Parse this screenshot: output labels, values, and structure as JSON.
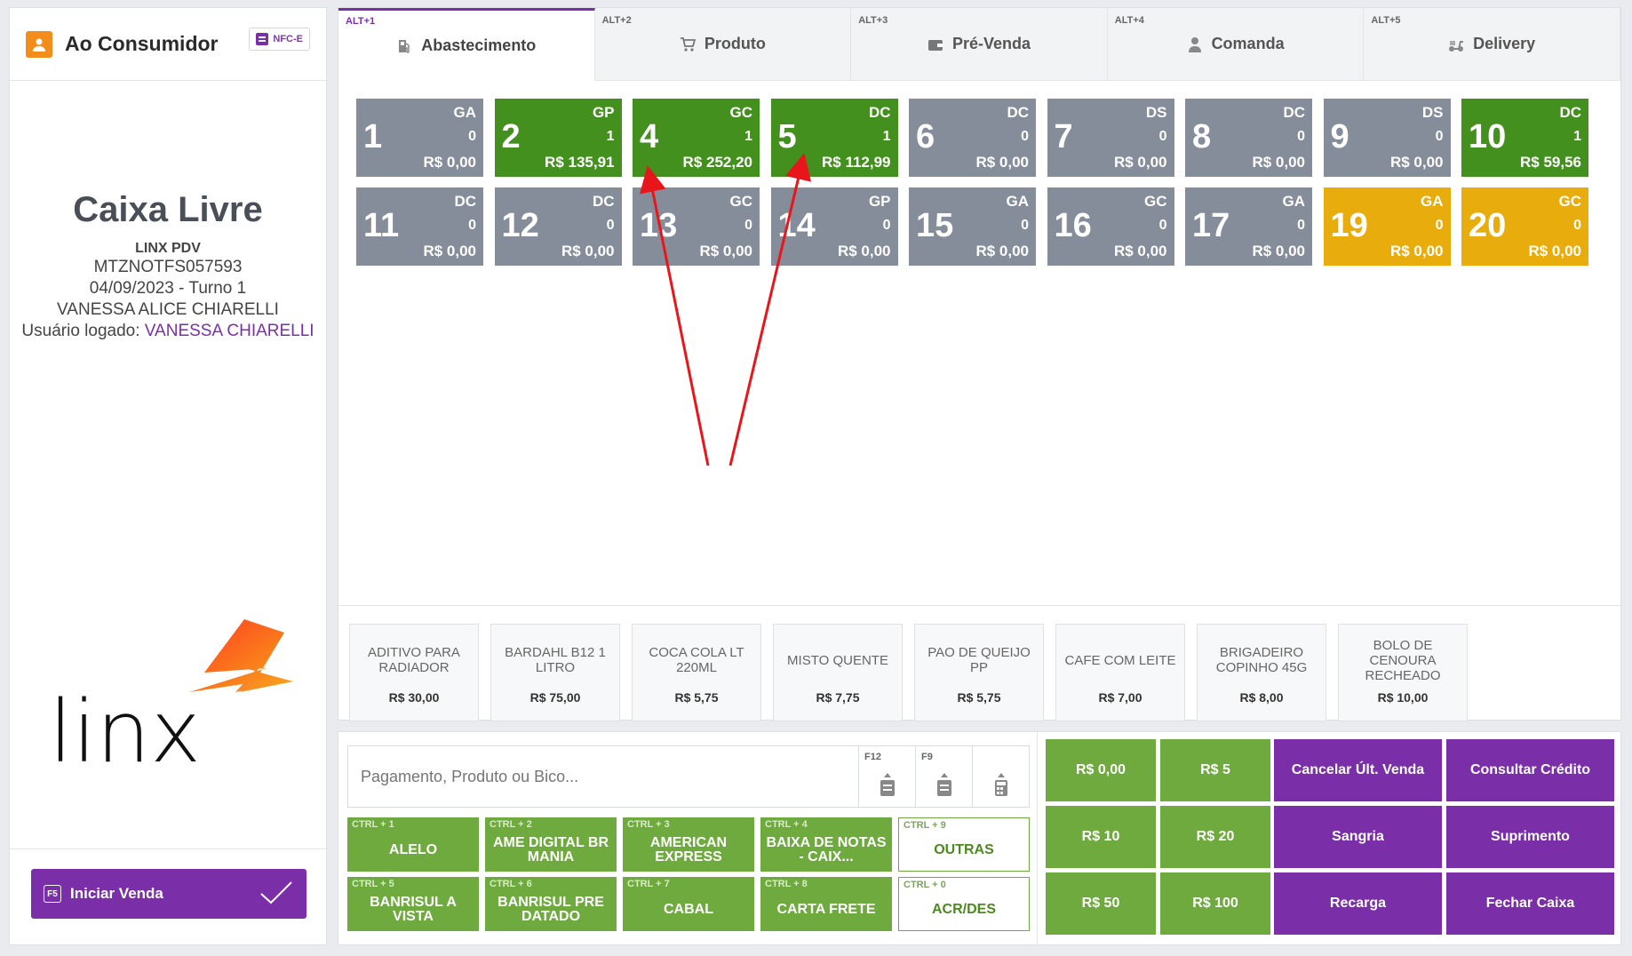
{
  "customer": {
    "name": "Ao Consumidor",
    "doc_type": "NFC-E"
  },
  "status": {
    "title": "Caixa Livre",
    "system": "LINX PDV",
    "terminal": "MTZNOTFS057593",
    "date_turn": "04/09/2023 - Turno 1",
    "operator": "VANESSA ALICE CHIARELLI",
    "logged_label": "Usuário logado:",
    "logged_user": "VANESSA CHIARELLI"
  },
  "logo_text": "linx",
  "start": {
    "key": "F5",
    "label": "Iniciar Venda"
  },
  "tabs": [
    {
      "shortcut": "ALT+1",
      "label": "Abastecimento",
      "icon": "fuel-pump-icon",
      "active": true
    },
    {
      "shortcut": "ALT+2",
      "label": "Produto",
      "icon": "cart-icon"
    },
    {
      "shortcut": "ALT+3",
      "label": "Pré-Venda",
      "icon": "wallet-icon"
    },
    {
      "shortcut": "ALT+4",
      "label": "Comanda",
      "icon": "person-icon"
    },
    {
      "shortcut": "ALT+5",
      "label": "Delivery",
      "icon": "scooter-icon"
    }
  ],
  "pumps": [
    {
      "number": "1",
      "fuel": "GA",
      "count": "0",
      "value": "R$ 0,00",
      "state": "idle"
    },
    {
      "number": "2",
      "fuel": "GP",
      "count": "1",
      "value": "R$ 135,91",
      "state": "pending"
    },
    {
      "number": "4",
      "fuel": "GC",
      "count": "1",
      "value": "R$ 252,20",
      "state": "pending"
    },
    {
      "number": "5",
      "fuel": "DC",
      "count": "1",
      "value": "R$ 112,99",
      "state": "pending"
    },
    {
      "number": "6",
      "fuel": "DC",
      "count": "0",
      "value": "R$ 0,00",
      "state": "idle"
    },
    {
      "number": "7",
      "fuel": "DS",
      "count": "0",
      "value": "R$ 0,00",
      "state": "idle"
    },
    {
      "number": "8",
      "fuel": "DC",
      "count": "0",
      "value": "R$ 0,00",
      "state": "idle"
    },
    {
      "number": "9",
      "fuel": "DS",
      "count": "0",
      "value": "R$ 0,00",
      "state": "idle"
    },
    {
      "number": "10",
      "fuel": "DC",
      "count": "1",
      "value": "R$ 59,56",
      "state": "pending"
    },
    {
      "number": "11",
      "fuel": "DC",
      "count": "0",
      "value": "R$ 0,00",
      "state": "idle"
    },
    {
      "number": "12",
      "fuel": "DC",
      "count": "0",
      "value": "R$ 0,00",
      "state": "idle"
    },
    {
      "number": "13",
      "fuel": "GC",
      "count": "0",
      "value": "R$ 0,00",
      "state": "idle"
    },
    {
      "number": "14",
      "fuel": "GP",
      "count": "0",
      "value": "R$ 0,00",
      "state": "idle"
    },
    {
      "number": "15",
      "fuel": "GA",
      "count": "0",
      "value": "R$ 0,00",
      "state": "idle"
    },
    {
      "number": "16",
      "fuel": "GC",
      "count": "0",
      "value": "R$ 0,00",
      "state": "idle"
    },
    {
      "number": "17",
      "fuel": "GA",
      "count": "0",
      "value": "R$ 0,00",
      "state": "idle"
    },
    {
      "number": "19",
      "fuel": "GA",
      "count": "0",
      "value": "R$ 0,00",
      "state": "warning"
    },
    {
      "number": "20",
      "fuel": "GC",
      "count": "0",
      "value": "R$ 0,00",
      "state": "warning"
    }
  ],
  "pump_colors": {
    "idle": "#858c9a",
    "pending": "#43901f",
    "warning": "#e8ad0c"
  },
  "products": [
    {
      "name": "ADITIVO PARA RADIADOR",
      "price": "R$ 30,00"
    },
    {
      "name": "BARDAHL B12 1 LITRO",
      "price": "R$ 75,00"
    },
    {
      "name": "COCA COLA LT 220ML",
      "price": "R$ 5,75"
    },
    {
      "name": "MISTO QUENTE",
      "price": "R$ 7,75"
    },
    {
      "name": "PAO DE QUEIJO PP",
      "price": "R$ 5,75"
    },
    {
      "name": "CAFE COM LEITE",
      "price": "R$ 7,00"
    },
    {
      "name": "BRIGADEIRO COPINHO 45G",
      "price": "R$ 8,00"
    },
    {
      "name": "BOLO DE CENOURA RECHEADO",
      "price": "R$ 10,00"
    }
  ],
  "search": {
    "placeholder": "Pagamento, Produto ou Bico...",
    "buttons": [
      {
        "key": "F12",
        "icon": "receipt-up-icon"
      },
      {
        "key": "F9",
        "icon": "receipt-icon"
      },
      {
        "key": "",
        "icon": "calculator-icon"
      }
    ]
  },
  "payments": [
    {
      "key": "CTRL + 1",
      "label": "ALELO",
      "outline": false
    },
    {
      "key": "CTRL + 2",
      "label": "AME DIGITAL BR MANIA",
      "outline": false
    },
    {
      "key": "CTRL + 3",
      "label": "AMERICAN EXPRESS",
      "outline": false
    },
    {
      "key": "CTRL + 4",
      "label": "BAIXA DE NOTAS - CAIX...",
      "outline": false
    },
    {
      "key": "CTRL + 9",
      "label": "OUTRAS",
      "outline": true
    },
    {
      "key": "CTRL + 5",
      "label": "BANRISUL A VISTA",
      "outline": false
    },
    {
      "key": "CTRL + 6",
      "label": "BANRISUL PRE DATADO",
      "outline": false
    },
    {
      "key": "CTRL + 7",
      "label": "CABAL",
      "outline": false
    },
    {
      "key": "CTRL + 8",
      "label": "CARTA FRETE",
      "outline": false
    },
    {
      "key": "CTRL + 0",
      "label": "ACR/DES",
      "outline": true
    }
  ],
  "quick_values": [
    "R$ 0,00",
    "R$ 5",
    "R$ 10",
    "R$ 20",
    "R$ 50",
    "R$ 100"
  ],
  "actions": [
    "Cancelar Últ. Venda",
    "Consultar Crédito",
    "Sangria",
    "Suprimento",
    "Recarga",
    "Fechar Caixa"
  ]
}
